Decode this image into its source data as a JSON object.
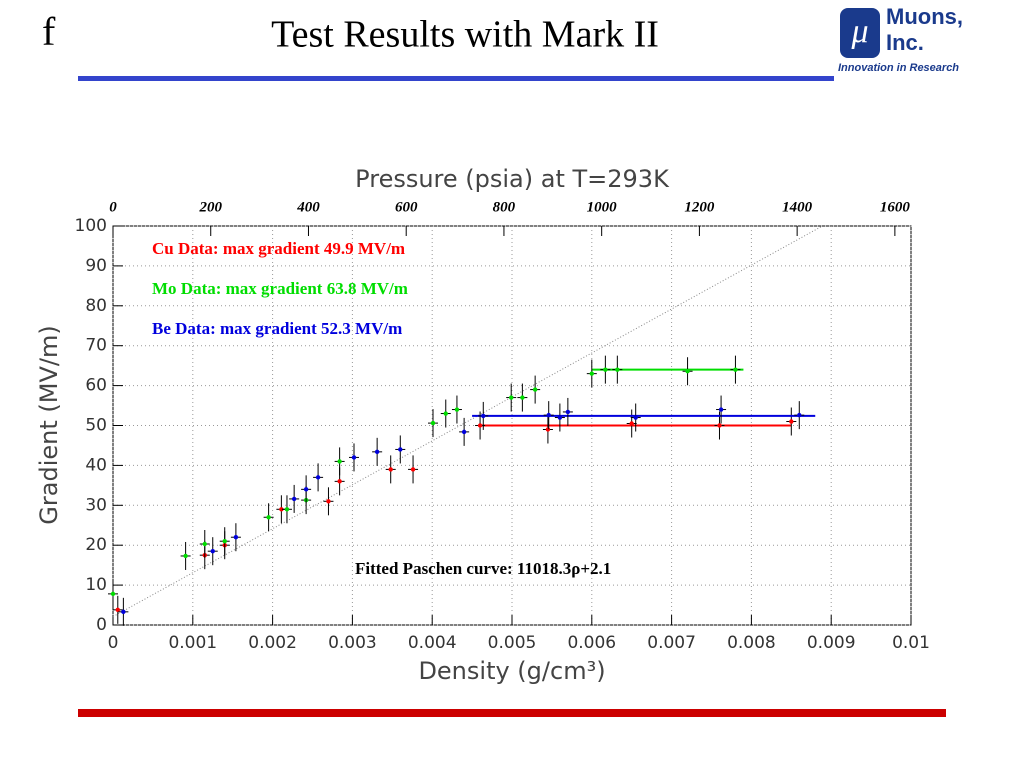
{
  "header": {
    "letter": "f",
    "title": "Test Results with Mark II",
    "logo_symbol": "μ",
    "logo_name": "Muons,",
    "logo_name2": "Inc.",
    "logo_tagline": "Innovation in Research"
  },
  "chart_data": {
    "type": "scatter",
    "x_label": "Density (g/cm³)",
    "y_label": "Gradient (MV/m)",
    "x2_label": "Pressure (psia) at T=293K",
    "xlim": [
      0,
      0.01
    ],
    "xticks": [
      0,
      0.001,
      0.002,
      0.003,
      0.004,
      0.005,
      0.006,
      0.007,
      0.008,
      0.009,
      0.01
    ],
    "ylim": [
      0,
      100
    ],
    "yticks": [
      0,
      10,
      20,
      30,
      40,
      50,
      60,
      70,
      80,
      90,
      100
    ],
    "x2lim": [
      0,
      1633
    ],
    "x2ticks": [
      0,
      200,
      400,
      600,
      800,
      1000,
      1200,
      1400,
      1600
    ],
    "grid": true,
    "annotations": [
      {
        "text": "Cu Data: max gradient 49.9 MV/m",
        "color": "#ff0000"
      },
      {
        "text": "Mo Data: max gradient 63.8 MV/m",
        "color": "#00dd00"
      },
      {
        "text": "Be Data: max gradient 52.3 MV/m",
        "color": "#0000dd"
      },
      {
        "text": "Fitted Paschen curve: 11018.3ρ+2.1",
        "color": "#000000"
      }
    ],
    "series": [
      {
        "color": "#ff0000",
        "x": [
          6e-05,
          0.00115,
          0.0014,
          0.00211,
          0.0027,
          0.00284,
          0.00348,
          0.00376,
          0.0046,
          0.00545,
          0.0065,
          0.0076,
          0.0085
        ],
        "values": [
          3.8,
          17.5,
          20,
          29,
          31,
          36,
          39,
          39,
          50,
          49,
          50.5,
          50,
          51
        ],
        "max_line": {
          "x": [
            0.0046,
            0.0085
          ],
          "y": 50
        }
      },
      {
        "color": "#00dd00",
        "x": [
          0,
          0.00091,
          0.00115,
          0.0014,
          0.00195,
          0.00218,
          0.00242,
          0.00284,
          0.00401,
          0.00417,
          0.00431,
          0.00499,
          0.00513,
          0.00529,
          0.006,
          0.00617,
          0.00632,
          0.0072,
          0.0078
        ],
        "values": [
          7.8,
          17.3,
          20.3,
          21,
          27,
          29,
          31.3,
          41,
          50.6,
          53,
          54,
          57,
          57,
          59,
          63,
          64,
          64,
          63.6,
          64
        ],
        "max_line": {
          "x": [
            0.006,
            0.0079
          ],
          "y": 64
        }
      },
      {
        "color": "#0000dd",
        "x": [
          0.00013,
          0.00125,
          0.00154,
          0.00227,
          0.00242,
          0.00257,
          0.00302,
          0.00331,
          0.0036,
          0.0044,
          0.00464,
          0.00546,
          0.0056,
          0.0057,
          0.00655,
          0.00762,
          0.0086
        ],
        "values": [
          3.3,
          18.5,
          22,
          31.6,
          34,
          37,
          42,
          43.4,
          44,
          48.4,
          52.4,
          52.6,
          52,
          53.4,
          52,
          54,
          52.6
        ],
        "max_line": {
          "x": [
            0.0045,
            0.0088
          ],
          "y": 52.4
        }
      }
    ],
    "paschen_line": {
      "x": [
        0,
        0.00889
      ],
      "y": [
        2.1,
        100
      ]
    }
  }
}
